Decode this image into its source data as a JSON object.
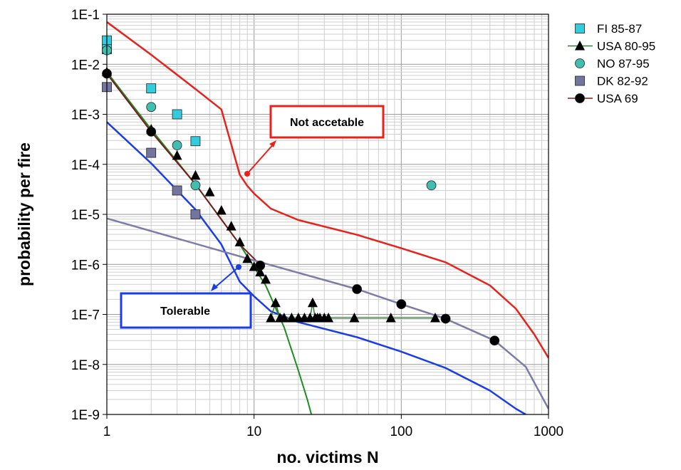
{
  "chart_data": {
    "type": "scatter",
    "xlabel": "no. victims N",
    "ylabel": "probability per fire",
    "xscale": "log",
    "yscale": "log",
    "xlim": [
      1,
      1000
    ],
    "ylim": [
      1e-09,
      0.1
    ],
    "x_ticks": [
      "1",
      "10",
      "100",
      "1000"
    ],
    "y_ticks": [
      "1E-9",
      "1E-8",
      "1E-7",
      "1E-6",
      "1E-5",
      "1E-4",
      "1E-3",
      "1E-2",
      "1E-1"
    ],
    "grid": true,
    "legend_position": "right",
    "series": [
      {
        "name": "FI 85-87",
        "marker": "square",
        "color": "#33ccdd",
        "line": false,
        "x": [
          1,
          1,
          2,
          3,
          4
        ],
        "y": [
          0.03,
          0.02,
          0.0033,
          0.001,
          0.00029
        ]
      },
      {
        "name": "USA 80-95",
        "marker": "triangle",
        "color": "#000000",
        "line": true,
        "line_color": "#2e7d32",
        "x": [
          1,
          2,
          3,
          4,
          5,
          6,
          7,
          8,
          9,
          10,
          11,
          12,
          13,
          14,
          15,
          16,
          18,
          20,
          22,
          24,
          25,
          26,
          27,
          28,
          30,
          32,
          48,
          85,
          170
        ],
        "y": [
          0.007,
          0.0005,
          0.00015,
          6e-05,
          2.8e-05,
          1.2e-05,
          5.8e-06,
          2.8e-06,
          1.3e-06,
          9e-07,
          7e-07,
          5e-07,
          8.5e-08,
          1.7e-07,
          8.5e-08,
          8.5e-08,
          8.5e-08,
          8.5e-08,
          8.5e-08,
          8.5e-08,
          1.7e-07,
          8.5e-08,
          8.5e-08,
          8.5e-08,
          8.5e-08,
          8.5e-08,
          8.5e-08,
          8.5e-08,
          8.5e-08
        ]
      },
      {
        "name": "NO 87-95",
        "marker": "circle",
        "color": "#40bfb0",
        "line": false,
        "x": [
          1,
          2,
          3,
          4,
          160
        ],
        "y": [
          0.019,
          0.0014,
          0.00024,
          3.8e-05,
          3.8e-05
        ]
      },
      {
        "name": "DK 82-92",
        "marker": "square",
        "color": "#7474a0",
        "line": false,
        "x": [
          1,
          2,
          3,
          4
        ],
        "y": [
          0.0035,
          0.00017,
          3e-05,
          1e-05
        ]
      },
      {
        "name": "USA 69",
        "marker": "circle",
        "color": "#000000",
        "line": true,
        "line_color": "#8b1a1a",
        "x": [
          1,
          2,
          11,
          50,
          100,
          200,
          430
        ],
        "y": [
          0.0065,
          0.00045,
          9.5e-07,
          3.2e-07,
          1.6e-07,
          8.2e-08,
          3e-08
        ]
      }
    ],
    "reference_curves": [
      {
        "id": "not-acceptable",
        "color": "#e8211b",
        "x": [
          1,
          2,
          4,
          6,
          8,
          9,
          10,
          13,
          20,
          50,
          100,
          200,
          400,
          600,
          800,
          1000
        ],
        "y": [
          0.07,
          0.0155,
          0.0032,
          0.00125,
          6.2e-05,
          3.7e-05,
          2.6e-05,
          1.3e-05,
          7.7e-06,
          3.9e-06,
          2.1e-06,
          1.1e-06,
          3.8e-07,
          1.3e-07,
          4e-08,
          1.35e-08
        ]
      },
      {
        "id": "tolerable",
        "color": "#1a3de8",
        "x": [
          1,
          2,
          4,
          6,
          8,
          10,
          13,
          20,
          50,
          100,
          200,
          400,
          600,
          700
        ],
        "y": [
          0.0007,
          0.000105,
          1.25e-05,
          2.5e-06,
          4.5e-07,
          2.3e-07,
          1.15e-07,
          7e-08,
          3.5e-08,
          1.8e-08,
          8.5e-09,
          3e-09,
          1.3e-09,
          1e-09
        ]
      },
      {
        "id": "usa80-fit",
        "color": "#1f8c1f",
        "x": [
          1,
          2,
          4,
          8,
          12,
          16,
          20,
          23,
          24.5
        ],
        "y": [
          0.007,
          0.0005,
          4e-05,
          2.5e-06,
          3.8e-07,
          5.5e-08,
          7.5e-09,
          2e-09,
          1e-09
        ]
      },
      {
        "id": "usa69-fit",
        "color": "#7a1a1a",
        "x": [
          1,
          2,
          4,
          8,
          10,
          11
        ],
        "y": [
          0.0065,
          0.00045,
          4e-05,
          2.5e-06,
          1.3e-06,
          9.5e-07
        ]
      },
      {
        "id": "usa69-tail",
        "color": "#7c7ca8",
        "x": [
          1,
          10,
          50,
          100,
          200,
          430,
          700,
          1000
        ],
        "y": [
          8.3e-06,
          1.2e-06,
          3.2e-07,
          1.6e-07,
          8.2e-08,
          3e-08,
          9e-09,
          1.3e-09
        ]
      }
    ],
    "annotations": [
      {
        "text": "Not accetable",
        "color": "#e8211b",
        "points_to": [
          9,
          4e-05
        ]
      },
      {
        "text": "Tolerable",
        "color": "#1a3de8",
        "points_to": [
          8,
          4.5e-07
        ]
      }
    ]
  }
}
